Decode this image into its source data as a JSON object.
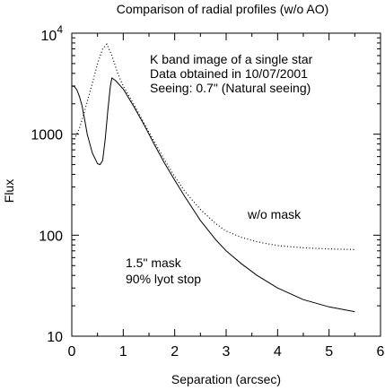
{
  "chart_data": {
    "type": "line",
    "title": "Comparison of radial profiles (w/o AO)",
    "xlabel": "Separation (arcsec)",
    "ylabel": "Flux",
    "x_scale": "linear",
    "y_scale": "log",
    "xlim": [
      0,
      6
    ],
    "ylim": [
      10,
      10000
    ],
    "grid": false,
    "legend": "none",
    "x_ticks": [
      "0",
      "1",
      "2",
      "3",
      "4",
      "5",
      "6"
    ],
    "y_ticks": [
      {
        "value": 10,
        "label": "10"
      },
      {
        "value": 100,
        "label": "100"
      },
      {
        "value": 1000,
        "label": "1000"
      },
      {
        "value": 10000,
        "base": "10",
        "exp": "4"
      }
    ],
    "annotations": {
      "info": [
        "K band image of a single star",
        "Data obtained in 10/07/2001",
        "Seeing: 0.7\" (Natural seeing)"
      ],
      "series_labels": [
        "w/o mask",
        "1.5\" mask",
        "90% lyot stop"
      ]
    },
    "series": [
      {
        "style": "dotted",
        "x": [
          0.0,
          0.05,
          0.1,
          0.15,
          0.2,
          0.3,
          0.4,
          0.5,
          0.6,
          0.68,
          0.78,
          0.9,
          1.0,
          1.2,
          1.4,
          1.6,
          1.8,
          2.0,
          2.2,
          2.5,
          2.8,
          3.0,
          3.3,
          3.6,
          4.0,
          4.5,
          5.0,
          5.5
        ],
        "y": [
          850,
          900,
          1000,
          1150,
          1400,
          2100,
          3200,
          5000,
          7000,
          7800,
          6000,
          3900,
          3000,
          2000,
          1300,
          850,
          560,
          380,
          270,
          180,
          130,
          110,
          95,
          86,
          79,
          75,
          73,
          72
        ]
      },
      {
        "style": "solid",
        "x": [
          0.0,
          0.05,
          0.1,
          0.15,
          0.2,
          0.25,
          0.3,
          0.4,
          0.5,
          0.55,
          0.6,
          0.65,
          0.7,
          0.75,
          0.78,
          0.85,
          1.0,
          1.2,
          1.4,
          1.6,
          1.8,
          2.0,
          2.2,
          2.5,
          2.8,
          3.0,
          3.3,
          3.6,
          4.0,
          4.5,
          5.0,
          5.5
        ],
        "y": [
          3000,
          2950,
          2750,
          2350,
          1900,
          1400,
          1000,
          650,
          510,
          500,
          550,
          900,
          1700,
          3000,
          3600,
          3400,
          2800,
          1900,
          1250,
          800,
          520,
          350,
          240,
          140,
          90,
          70,
          52,
          40,
          30,
          23,
          19.5,
          17.5
        ]
      }
    ]
  }
}
